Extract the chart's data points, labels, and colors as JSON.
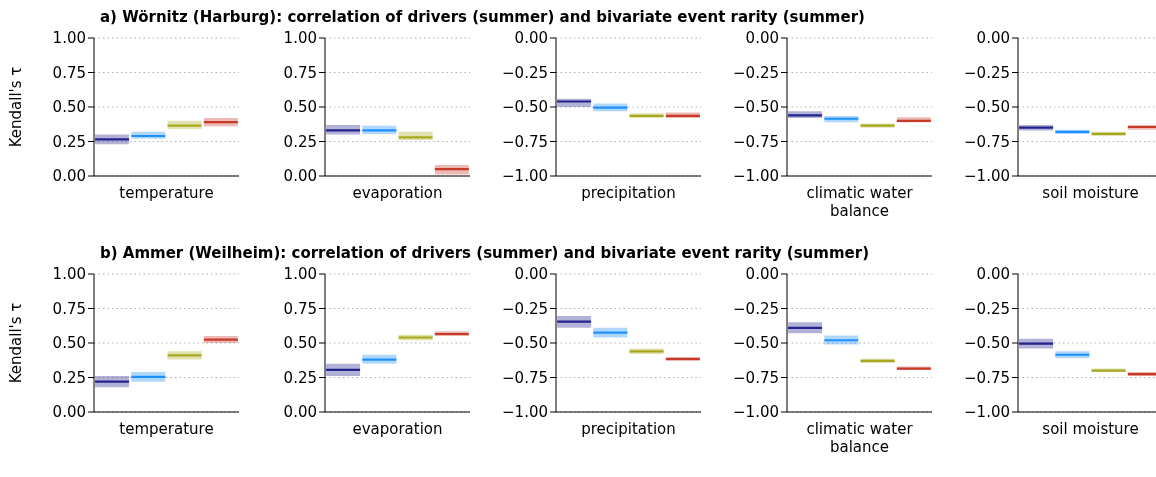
{
  "chart_data": [
    {
      "type": "box",
      "title": "a) Wörnitz (Harburg): correlation of drivers (summer) and bivariate event rarity (summer)",
      "ylabel": "Kendall's τ",
      "xlabel": "temperature",
      "categories": [
        null,
        null,
        null,
        null
      ],
      "colors": [
        "#23238e",
        "#1e90ff",
        "#a8a820",
        "#c83a28"
      ],
      "boxes": [
        {
          "low": 0.23,
          "q1": 0.23,
          "median": 0.265,
          "q3": 0.3,
          "high": 0.3
        },
        {
          "low": 0.27,
          "q1": 0.27,
          "median": 0.29,
          "q3": 0.32,
          "high": 0.32
        },
        {
          "low": 0.34,
          "q1": 0.34,
          "median": 0.365,
          "q3": 0.4,
          "high": 0.4
        },
        {
          "low": 0.36,
          "q1": 0.36,
          "median": 0.39,
          "q3": 0.42,
          "high": 0.42
        }
      ],
      "ylim": [
        0,
        1
      ],
      "yticks": [
        {
          "value": 0,
          "label": "0.00"
        },
        {
          "value": 0.25,
          "label": "0.25"
        },
        {
          "value": 0.5,
          "label": "0.50"
        },
        {
          "value": 0.75,
          "label": "0.75"
        },
        {
          "value": 1,
          "label": "1.00"
        }
      ],
      "grid": "y"
    },
    {
      "type": "box",
      "xlabel": "evaporation",
      "categories": [
        null,
        null,
        null,
        null
      ],
      "colors": [
        "#23238e",
        "#1e90ff",
        "#a8a820",
        "#c83a28"
      ],
      "boxes": [
        {
          "low": 0.3,
          "q1": 0.3,
          "median": 0.33,
          "q3": 0.37,
          "high": 0.37
        },
        {
          "low": 0.305,
          "q1": 0.305,
          "median": 0.33,
          "q3": 0.365,
          "high": 0.365
        },
        {
          "low": 0.26,
          "q1": 0.26,
          "median": 0.28,
          "q3": 0.32,
          "high": 0.32
        },
        {
          "low": 0.01,
          "q1": 0.01,
          "median": 0.05,
          "q3": 0.08,
          "high": 0.08
        }
      ],
      "ylim": [
        0,
        1
      ],
      "yticks": [
        {
          "value": 0,
          "label": "0.00"
        },
        {
          "value": 0.25,
          "label": "0.25"
        },
        {
          "value": 0.5,
          "label": "0.50"
        },
        {
          "value": 0.75,
          "label": "0.75"
        },
        {
          "value": 1,
          "label": "1.00"
        }
      ],
      "grid": "y"
    },
    {
      "type": "box",
      "xlabel": "precipitation",
      "categories": [
        null,
        null,
        null,
        null
      ],
      "colors": [
        "#23238e",
        "#1e90ff",
        "#a8a820",
        "#c83a28"
      ],
      "boxes": [
        {
          "low": -0.5,
          "q1": -0.5,
          "median": -0.46,
          "q3": -0.44,
          "high": -0.44
        },
        {
          "low": -0.53,
          "q1": -0.53,
          "median": -0.505,
          "q3": -0.475,
          "high": -0.475
        },
        {
          "low": -0.58,
          "q1": -0.58,
          "median": -0.565,
          "q3": -0.545,
          "high": -0.545
        },
        {
          "low": -0.58,
          "q1": -0.58,
          "median": -0.565,
          "q3": -0.54,
          "high": -0.54
        }
      ],
      "ylim": [
        -1,
        0
      ],
      "yticks": [
        {
          "value": -1,
          "label": "−1.00"
        },
        {
          "value": -0.75,
          "label": "−0.75"
        },
        {
          "value": -0.5,
          "label": "−0.50"
        },
        {
          "value": -0.25,
          "label": "−0.25"
        },
        {
          "value": 0,
          "label": "0.00"
        }
      ],
      "grid": "y"
    },
    {
      "type": "box",
      "xlabel": "climatic water balance",
      "categories": [
        null,
        null,
        null,
        null
      ],
      "colors": [
        "#23238e",
        "#1e90ff",
        "#a8a820",
        "#c83a28"
      ],
      "boxes": [
        {
          "low": -0.58,
          "q1": -0.58,
          "median": -0.56,
          "q3": -0.53,
          "high": -0.53
        },
        {
          "low": -0.61,
          "q1": -0.61,
          "median": -0.585,
          "q3": -0.565,
          "high": -0.565
        },
        {
          "low": -0.65,
          "q1": -0.65,
          "median": -0.635,
          "q3": -0.62,
          "high": -0.62
        },
        {
          "low": -0.61,
          "q1": -0.61,
          "median": -0.6,
          "q3": -0.575,
          "high": -0.575
        }
      ],
      "ylim": [
        -1,
        0
      ],
      "yticks": [
        {
          "value": -1,
          "label": "−1.00"
        },
        {
          "value": -0.75,
          "label": "−0.75"
        },
        {
          "value": -0.5,
          "label": "−0.50"
        },
        {
          "value": -0.25,
          "label": "−0.25"
        },
        {
          "value": 0,
          "label": "0.00"
        }
      ],
      "grid": "y"
    },
    {
      "type": "box",
      "xlabel": "soil moisture",
      "categories": [
        null,
        null,
        null,
        null
      ],
      "colors": [
        "#23238e",
        "#1e90ff",
        "#a8a820",
        "#c83a28"
      ],
      "boxes": [
        {
          "low": -0.67,
          "q1": -0.67,
          "median": -0.65,
          "q3": -0.63,
          "high": -0.63
        },
        {
          "low": -0.695,
          "q1": -0.695,
          "median": -0.68,
          "q3": -0.665,
          "high": -0.665
        },
        {
          "low": -0.71,
          "q1": -0.71,
          "median": -0.695,
          "q3": -0.68,
          "high": -0.68
        },
        {
          "low": -0.665,
          "q1": -0.665,
          "median": -0.645,
          "q3": -0.63,
          "high": -0.63
        }
      ],
      "ylim": [
        -1,
        0
      ],
      "yticks": [
        {
          "value": -1,
          "label": "−1.00"
        },
        {
          "value": -0.75,
          "label": "−0.75"
        },
        {
          "value": -0.5,
          "label": "−0.50"
        },
        {
          "value": -0.25,
          "label": "−0.25"
        },
        {
          "value": 0,
          "label": "0.00"
        }
      ],
      "grid": "y"
    },
    {
      "type": "box",
      "title": "b) Ammer (Weilheim): correlation of drivers (summer) and bivariate event rarity (summer)",
      "ylabel": "Kendall's τ",
      "xlabel": "temperature",
      "categories": [
        null,
        null,
        null,
        null
      ],
      "colors": [
        "#23238e",
        "#1e90ff",
        "#a8a820",
        "#c83a28"
      ],
      "boxes": [
        {
          "low": 0.18,
          "q1": 0.18,
          "median": 0.22,
          "q3": 0.26,
          "high": 0.26
        },
        {
          "low": 0.22,
          "q1": 0.22,
          "median": 0.255,
          "q3": 0.29,
          "high": 0.29
        },
        {
          "low": 0.38,
          "q1": 0.38,
          "median": 0.41,
          "q3": 0.44,
          "high": 0.44
        },
        {
          "low": 0.5,
          "q1": 0.5,
          "median": 0.525,
          "q3": 0.55,
          "high": 0.55
        }
      ],
      "ylim": [
        0,
        1
      ],
      "yticks": [
        {
          "value": 0,
          "label": "0.00"
        },
        {
          "value": 0.25,
          "label": "0.25"
        },
        {
          "value": 0.5,
          "label": "0.50"
        },
        {
          "value": 0.75,
          "label": "0.75"
        },
        {
          "value": 1,
          "label": "1.00"
        }
      ],
      "grid": "y"
    },
    {
      "type": "box",
      "xlabel": "evaporation",
      "categories": [
        null,
        null,
        null,
        null
      ],
      "colors": [
        "#23238e",
        "#1e90ff",
        "#a8a820",
        "#c83a28"
      ],
      "boxes": [
        {
          "low": 0.26,
          "q1": 0.26,
          "median": 0.305,
          "q3": 0.35,
          "high": 0.35
        },
        {
          "low": 0.35,
          "q1": 0.35,
          "median": 0.38,
          "q3": 0.415,
          "high": 0.415
        },
        {
          "low": 0.52,
          "q1": 0.52,
          "median": 0.54,
          "q3": 0.56,
          "high": 0.56
        },
        {
          "low": 0.555,
          "q1": 0.555,
          "median": 0.565,
          "q3": 0.585,
          "high": 0.585
        }
      ],
      "ylim": [
        0,
        1
      ],
      "yticks": [
        {
          "value": 0,
          "label": "0.00"
        },
        {
          "value": 0.25,
          "label": "0.25"
        },
        {
          "value": 0.5,
          "label": "0.50"
        },
        {
          "value": 0.75,
          "label": "0.75"
        },
        {
          "value": 1,
          "label": "1.00"
        }
      ],
      "grid": "y"
    },
    {
      "type": "box",
      "xlabel": "precipitation",
      "categories": [
        null,
        null,
        null,
        null
      ],
      "colors": [
        "#23238e",
        "#1e90ff",
        "#a8a820",
        "#c83a28"
      ],
      "boxes": [
        {
          "low": -0.39,
          "q1": -0.39,
          "median": -0.345,
          "q3": -0.305,
          "high": -0.305
        },
        {
          "low": -0.46,
          "q1": -0.46,
          "median": -0.425,
          "q3": -0.39,
          "high": -0.39
        },
        {
          "low": -0.58,
          "q1": -0.58,
          "median": -0.56,
          "q3": -0.54,
          "high": -0.54
        },
        {
          "low": -0.63,
          "q1": -0.63,
          "median": -0.615,
          "q3": -0.605,
          "high": -0.605
        }
      ],
      "ylim": [
        -1,
        0
      ],
      "yticks": [
        {
          "value": -1,
          "label": "−1.00"
        },
        {
          "value": -0.75,
          "label": "−0.75"
        },
        {
          "value": -0.5,
          "label": "−0.50"
        },
        {
          "value": -0.25,
          "label": "−0.25"
        },
        {
          "value": 0,
          "label": "0.00"
        }
      ],
      "grid": "y"
    },
    {
      "type": "box",
      "xlabel": "climatic water balance",
      "categories": [
        null,
        null,
        null,
        null
      ],
      "colors": [
        "#23238e",
        "#1e90ff",
        "#a8a820",
        "#c83a28"
      ],
      "boxes": [
        {
          "low": -0.43,
          "q1": -0.43,
          "median": -0.39,
          "q3": -0.35,
          "high": -0.35
        },
        {
          "low": -0.51,
          "q1": -0.51,
          "median": -0.48,
          "q3": -0.445,
          "high": -0.445
        },
        {
          "low": -0.645,
          "q1": -0.645,
          "median": -0.63,
          "q3": -0.615,
          "high": -0.615
        },
        {
          "low": -0.695,
          "q1": -0.695,
          "median": -0.685,
          "q3": -0.67,
          "high": -0.67
        }
      ],
      "ylim": [
        -1,
        0
      ],
      "yticks": [
        {
          "value": -1,
          "label": "−1.00"
        },
        {
          "value": -0.75,
          "label": "−0.75"
        },
        {
          "value": -0.5,
          "label": "−0.50"
        },
        {
          "value": -0.25,
          "label": "−0.25"
        },
        {
          "value": 0,
          "label": "0.00"
        }
      ],
      "grid": "y"
    },
    {
      "type": "box",
      "xlabel": "soil moisture",
      "categories": [
        null,
        null,
        null,
        null
      ],
      "colors": [
        "#23238e",
        "#1e90ff",
        "#a8a820",
        "#c83a28"
      ],
      "boxes": [
        {
          "low": -0.54,
          "q1": -0.54,
          "median": -0.505,
          "q3": -0.47,
          "high": -0.47
        },
        {
          "low": -0.61,
          "q1": -0.61,
          "median": -0.585,
          "q3": -0.56,
          "high": -0.56
        },
        {
          "low": -0.71,
          "q1": -0.71,
          "median": -0.7,
          "q3": -0.685,
          "high": -0.685
        },
        {
          "low": -0.74,
          "q1": -0.74,
          "median": -0.725,
          "q3": -0.71,
          "high": -0.71
        }
      ],
      "ylim": [
        -1,
        0
      ],
      "yticks": [
        {
          "value": -1,
          "label": "−1.00"
        },
        {
          "value": -0.75,
          "label": "−0.75"
        },
        {
          "value": -0.5,
          "label": "−0.50"
        },
        {
          "value": -0.25,
          "label": "−0.25"
        },
        {
          "value": 0,
          "label": "0.00"
        }
      ],
      "grid": "y"
    }
  ]
}
